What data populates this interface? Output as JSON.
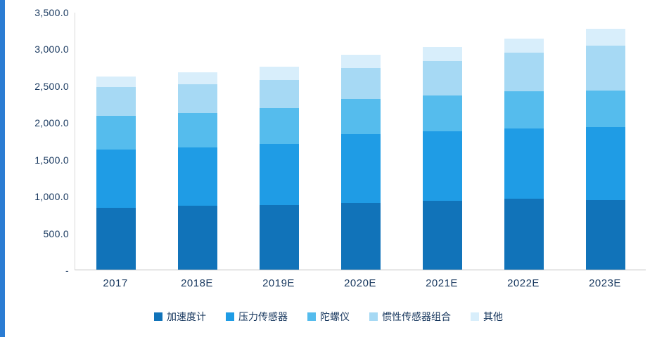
{
  "page": {
    "accent_strip_color": "#2b7cd3",
    "text_color": "#17375e",
    "background_color": "#ffffff"
  },
  "chart_data": {
    "type": "bar",
    "stacked": true,
    "title": "",
    "xlabel": "",
    "ylabel": "",
    "grid": false,
    "legend_position": "bottom",
    "ylim": [
      0,
      3500
    ],
    "categories": [
      "2017",
      "2018E",
      "2019E",
      "2020E",
      "2021E",
      "2022E",
      "2023E"
    ],
    "series": [
      {
        "name": "加速度计",
        "color": "#1173b9",
        "values": [
          840,
          865,
          875,
          910,
          930,
          960,
          945
        ]
      },
      {
        "name": "压力传感器",
        "color": "#1f9ce5",
        "values": [
          790,
          795,
          835,
          930,
          950,
          960,
          995
        ]
      },
      {
        "name": "陀螺仪",
        "color": "#55bced",
        "values": [
          460,
          470,
          480,
          480,
          490,
          500,
          490
        ]
      },
      {
        "name": "惯性传感器组合",
        "color": "#a6d9f4",
        "values": [
          390,
          390,
          390,
          420,
          460,
          530,
          610
        ]
      },
      {
        "name": "其他",
        "color": "#d8eefb",
        "values": [
          140,
          160,
          180,
          180,
          190,
          190,
          230
        ]
      }
    ],
    "totals": [
      2620,
      2680,
      2760,
      2920,
      3020,
      3140,
      3270
    ],
    "y_ticks": [
      {
        "value": 3500,
        "label": "3,500.0"
      },
      {
        "value": 3000,
        "label": "3,000.0"
      },
      {
        "value": 2500,
        "label": "2,500.0"
      },
      {
        "value": 2000,
        "label": "2,000.0"
      },
      {
        "value": 1500,
        "label": "1,500.0"
      },
      {
        "value": 1000,
        "label": "1,000.0"
      },
      {
        "value": 500,
        "label": "500.0"
      },
      {
        "value": 0,
        "label": "-"
      }
    ]
  }
}
